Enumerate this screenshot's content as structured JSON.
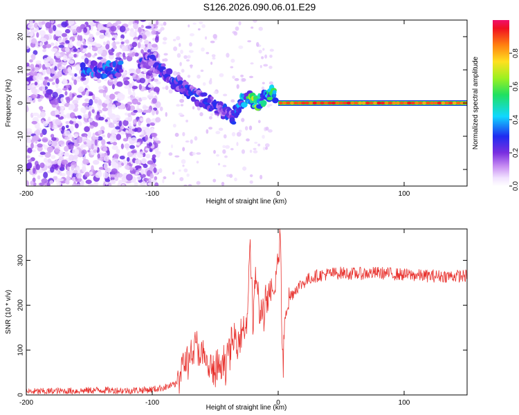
{
  "title": "S126.2026.090.06.01.E29",
  "colors": {
    "snr_line": "#e8322e",
    "band": "#e02020",
    "blob": "#6a2bd8",
    "frame": "#000000"
  },
  "chart_data": [
    {
      "type": "heatmap",
      "xlabel": "Height of straight line (km)",
      "ylabel": "Frequency (Hz)",
      "xlim": [
        -200,
        150
      ],
      "ylim": [
        -25,
        25
      ],
      "xticks": [
        -200,
        -100,
        0,
        100
      ],
      "yticks": [
        -20,
        -10,
        0,
        10,
        20
      ],
      "colorbar": {
        "label": "Normalized spectral amplitude",
        "range": [
          0,
          1
        ],
        "ticks": [
          0.0,
          0.2,
          0.4,
          0.6,
          0.8
        ],
        "tick_labels": [
          "0.0",
          "0.2",
          "0.4",
          "0.6",
          "0.8"
        ],
        "colormap": "rainbow"
      },
      "ridge": {
        "description": "Dominant frequency track vs height",
        "x": [
          -150,
          -140,
          -130,
          -110,
          -100,
          -90,
          -80,
          -70,
          -60,
          -50,
          -40,
          -35,
          -30,
          -25,
          -20,
          -15,
          -10,
          -5,
          0,
          10,
          50,
          100,
          150
        ],
        "y": [
          10,
          10,
          10,
          13,
          12,
          9,
          6,
          3,
          1,
          -1,
          -3,
          -4,
          0,
          2,
          0,
          0,
          2,
          3,
          1,
          0,
          0,
          0,
          0
        ],
        "amplitude": [
          0.35,
          0.35,
          0.35,
          0.3,
          0.3,
          0.3,
          0.3,
          0.3,
          0.3,
          0.3,
          0.3,
          0.3,
          0.4,
          0.5,
          0.7,
          0.6,
          0.5,
          0.6,
          0.7,
          0.9,
          0.95,
          0.95,
          0.95
        ]
      }
    },
    {
      "type": "line",
      "xlabel": "Height of straight line (km)",
      "ylabel": "SNR (10 * v/v)",
      "xlim": [
        -200,
        150
      ],
      "ylim": [
        0,
        370
      ],
      "xticks": [
        -200,
        -100,
        0,
        100
      ],
      "yticks": [
        0,
        100,
        200,
        300
      ],
      "series": [
        {
          "name": "SNR",
          "x": [
            -200,
            -180,
            -160,
            -140,
            -120,
            -100,
            -90,
            -80,
            -70,
            -65,
            -60,
            -55,
            -50,
            -45,
            -40,
            -35,
            -30,
            -25,
            -22,
            -20,
            -18,
            -15,
            -12,
            -10,
            -8,
            -5,
            -3,
            -1,
            2,
            3,
            4,
            5,
            6,
            8,
            10,
            15,
            20,
            25,
            30,
            40,
            50,
            60,
            80,
            100,
            120,
            150
          ],
          "y": [
            10,
            12,
            14,
            18,
            15,
            20,
            30,
            45,
            90,
            110,
            80,
            60,
            50,
            60,
            90,
            120,
            140,
            160,
            340,
            150,
            280,
            180,
            190,
            200,
            210,
            215,
            230,
            280,
            360,
            100,
            60,
            170,
            200,
            210,
            220,
            240,
            250,
            260,
            265,
            270,
            272,
            270,
            272,
            268,
            265,
            265
          ]
        }
      ]
    }
  ]
}
